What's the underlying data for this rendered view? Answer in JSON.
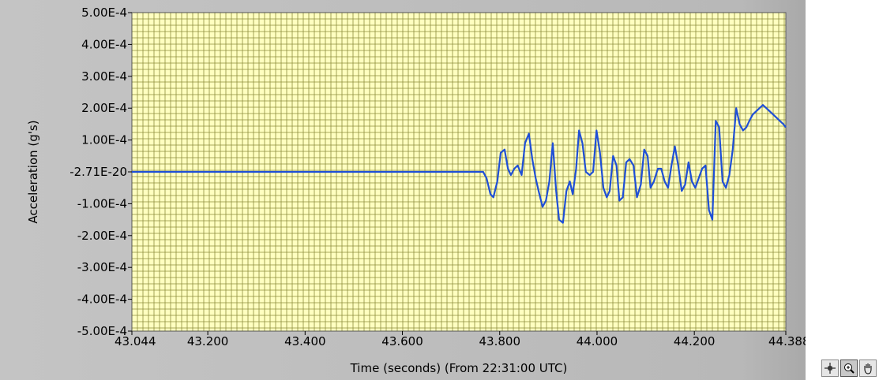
{
  "chart_data": {
    "type": "line",
    "xlabel": "Time (seconds) (From 22:31:00 UTC)",
    "ylabel": "Acceleration (g's)",
    "xlim": [
      43.044,
      44.388
    ],
    "ylim": [
      -0.0005,
      0.0005
    ],
    "x_ticks": [
      {
        "value": 43.044,
        "label": "43.044"
      },
      {
        "value": 43.2,
        "label": "43.200"
      },
      {
        "value": 43.4,
        "label": "43.400"
      },
      {
        "value": 43.6,
        "label": "43.600"
      },
      {
        "value": 43.8,
        "label": "43.800"
      },
      {
        "value": 44.0,
        "label": "44.000"
      },
      {
        "value": 44.2,
        "label": "44.200"
      },
      {
        "value": 44.388,
        "label": "44.388"
      }
    ],
    "y_ticks": [
      {
        "value": 0.0005,
        "label": "5.00E-4"
      },
      {
        "value": 0.0004,
        "label": "4.00E-4"
      },
      {
        "value": 0.0003,
        "label": "3.00E-4"
      },
      {
        "value": 0.0002,
        "label": "2.00E-4"
      },
      {
        "value": 0.0001,
        "label": "1.00E-4"
      },
      {
        "value": 0.0,
        "label": "-2.71E-20"
      },
      {
        "value": -0.0001,
        "label": "-1.00E-4"
      },
      {
        "value": -0.0002,
        "label": "-2.00E-4"
      },
      {
        "value": -0.0003,
        "label": "-3.00E-4"
      },
      {
        "value": -0.0004,
        "label": "-4.00E-4"
      },
      {
        "value": -0.0005,
        "label": "-5.00E-4"
      }
    ],
    "grid": true,
    "background_color": "#ffffc0",
    "grid_color": "#8c8c3c",
    "series": [
      {
        "color": "#1f4fd6",
        "x": [
          43.044,
          43.766,
          43.773,
          43.781,
          43.787,
          43.795,
          43.802,
          43.81,
          43.817,
          43.823,
          43.83,
          43.837,
          43.845,
          43.852,
          43.86,
          43.867,
          43.874,
          43.88,
          43.888,
          43.895,
          43.902,
          43.909,
          43.916,
          43.922,
          43.93,
          43.937,
          43.944,
          43.95,
          43.957,
          43.963,
          43.97,
          43.977,
          43.985,
          43.992,
          43.999,
          44.006,
          44.013,
          44.02,
          44.026,
          44.033,
          44.04,
          44.046,
          44.053,
          44.06,
          44.067,
          44.075,
          44.082,
          44.09,
          44.097,
          44.104,
          44.11,
          44.117,
          44.125,
          44.132,
          44.139,
          44.146,
          44.153,
          44.16,
          44.167,
          44.174,
          44.181,
          44.188,
          44.195,
          44.202,
          44.209,
          44.216,
          44.223,
          44.23,
          44.237,
          44.244,
          44.251,
          44.258,
          44.265,
          44.272,
          44.279,
          44.286,
          44.293,
          44.3,
          44.307,
          44.313,
          44.32,
          44.327,
          44.334,
          44.341,
          44.348,
          44.355,
          44.362,
          44.369,
          44.376,
          44.383,
          44.388
        ],
        "y": [
          0.0,
          0.0,
          -2e-05,
          -7e-05,
          -8e-05,
          -3e-05,
          6e-05,
          7e-05,
          1e-05,
          -1e-05,
          1e-05,
          2e-05,
          -1e-05,
          9e-05,
          0.00012,
          4e-05,
          -2e-05,
          -6e-05,
          -0.00011,
          -9e-05,
          -3e-05,
          9e-05,
          -6e-05,
          -0.00015,
          -0.00016,
          -6e-05,
          -3e-05,
          -7e-05,
          1e-05,
          0.00013,
          9e-05,
          0.0,
          -1e-05,
          0.0,
          0.00013,
          6e-05,
          -5e-05,
          -8e-05,
          -6e-05,
          5e-05,
          2e-05,
          -9e-05,
          -8e-05,
          3e-05,
          4e-05,
          2e-05,
          -8e-05,
          -4e-05,
          7e-05,
          5e-05,
          -5e-05,
          -3e-05,
          1e-05,
          1e-05,
          -3e-05,
          -5e-05,
          2e-05,
          8e-05,
          2e-05,
          -6e-05,
          -4e-05,
          3e-05,
          -3e-05,
          -5e-05,
          -2e-05,
          1e-05,
          2e-05,
          -0.00012,
          -0.00015,
          0.00016,
          0.00014,
          -3e-05,
          -5e-05,
          -1e-05,
          7e-05,
          0.0002,
          0.00015,
          0.00013,
          0.00014,
          0.00016,
          0.00018,
          0.00019,
          0.0002,
          0.00021,
          0.0002,
          0.00019,
          0.00018,
          0.00017,
          0.00016,
          0.00015,
          0.00014
        ]
      }
    ]
  },
  "palette": {
    "cursor_tool": "crosshair-icon",
    "zoom_tool": "zoom-icon",
    "pan_tool": "hand-icon"
  }
}
